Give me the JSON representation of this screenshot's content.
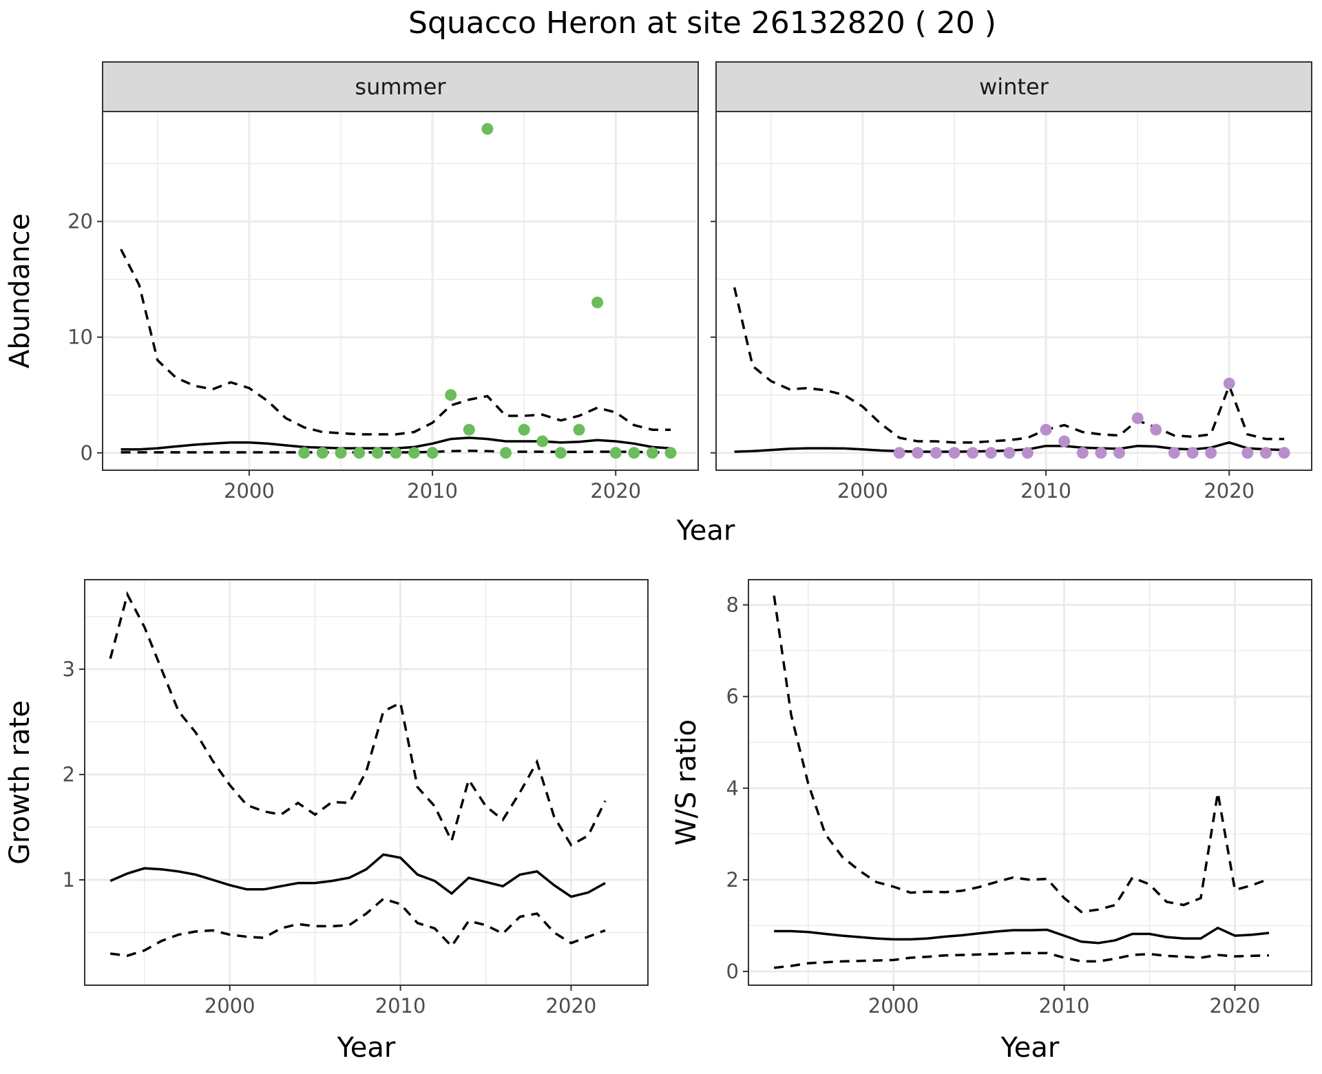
{
  "title": "Squacco Heron at site 26132820 ( 20 )",
  "colors": {
    "summer_points": "#6bbd5b",
    "winter_points": "#b98fcb",
    "lines": "#000000"
  },
  "chart_data": [
    {
      "type": "scatter",
      "panel": "summer",
      "strip_label": "summer",
      "xlabel": "",
      "ylabel": "Abundance",
      "xlim": [
        1992,
        2024.5
      ],
      "ylim": [
        -1.5,
        29.5
      ],
      "xticks": [
        2000,
        2010,
        2020
      ],
      "yticks": [
        0,
        10,
        20
      ],
      "grid": true,
      "points": {
        "color": "#6bbd5b",
        "x": [
          2003,
          2004,
          2005,
          2006,
          2007,
          2008,
          2009,
          2010,
          2011,
          2012,
          2013,
          2014,
          2015,
          2016,
          2017,
          2018,
          2019,
          2020,
          2021,
          2022,
          2023
        ],
        "y": [
          0,
          0,
          0,
          0,
          0,
          0,
          0,
          0,
          5,
          2,
          28,
          0,
          2,
          1,
          0,
          2,
          13,
          0,
          0,
          0,
          0
        ]
      },
      "lines": {
        "x": [
          1993,
          1994,
          1995,
          1996,
          1997,
          1998,
          1999,
          2000,
          2001,
          2002,
          2003,
          2004,
          2005,
          2006,
          2007,
          2008,
          2009,
          2010,
          2011,
          2012,
          2013,
          2014,
          2015,
          2016,
          2017,
          2018,
          2019,
          2020,
          2021,
          2022,
          2023
        ],
        "estimate": [
          0.3,
          0.3,
          0.4,
          0.55,
          0.7,
          0.8,
          0.9,
          0.9,
          0.8,
          0.65,
          0.5,
          0.45,
          0.4,
          0.4,
          0.4,
          0.4,
          0.5,
          0.8,
          1.2,
          1.3,
          1.2,
          1.0,
          1.0,
          1.0,
          0.9,
          0.95,
          1.1,
          1.0,
          0.8,
          0.5,
          0.4
        ],
        "upper": [
          17.6,
          14.5,
          8.0,
          6.5,
          5.8,
          5.5,
          6.1,
          5.6,
          4.5,
          3.0,
          2.2,
          1.8,
          1.7,
          1.6,
          1.6,
          1.6,
          1.8,
          2.6,
          4.1,
          4.6,
          4.9,
          3.2,
          3.2,
          3.3,
          2.8,
          3.2,
          3.9,
          3.5,
          2.4,
          2.0,
          2.0
        ],
        "lower": [
          0.05,
          0.05,
          0.05,
          0.05,
          0.05,
          0.05,
          0.05,
          0.05,
          0.05,
          0.05,
          0.05,
          0.05,
          0.05,
          0.05,
          0.05,
          0.05,
          0.05,
          0.08,
          0.15,
          0.18,
          0.15,
          0.1,
          0.1,
          0.1,
          0.08,
          0.08,
          0.1,
          0.1,
          0.08,
          0.05,
          0.05
        ]
      }
    },
    {
      "type": "scatter",
      "panel": "winter",
      "strip_label": "winter",
      "xlabel": "",
      "ylabel": "",
      "xlim": [
        1992,
        2024.5
      ],
      "ylim": [
        -1.5,
        29.5
      ],
      "xticks": [
        2000,
        2010,
        2020
      ],
      "yticks": [
        0,
        10,
        20
      ],
      "grid": true,
      "points": {
        "color": "#b98fcb",
        "x": [
          2002,
          2003,
          2004,
          2005,
          2006,
          2007,
          2008,
          2009,
          2010,
          2011,
          2012,
          2013,
          2014,
          2015,
          2016,
          2017,
          2018,
          2019,
          2020,
          2021,
          2022,
          2023
        ],
        "y": [
          0,
          0,
          0,
          0,
          0,
          0,
          0,
          0,
          2,
          1,
          0,
          0,
          0,
          3,
          2,
          0,
          0,
          0,
          6,
          0,
          0,
          0
        ]
      },
      "lines": {
        "x": [
          1993,
          1994,
          1995,
          1996,
          1997,
          1998,
          1999,
          2000,
          2001,
          2002,
          2003,
          2004,
          2005,
          2006,
          2007,
          2008,
          2009,
          2010,
          2011,
          2012,
          2013,
          2014,
          2015,
          2016,
          2017,
          2018,
          2019,
          2020,
          2021,
          2022,
          2023
        ],
        "estimate": [
          0.1,
          0.15,
          0.25,
          0.35,
          0.4,
          0.4,
          0.38,
          0.3,
          0.2,
          0.15,
          0.1,
          0.1,
          0.1,
          0.12,
          0.15,
          0.2,
          0.3,
          0.6,
          0.6,
          0.45,
          0.4,
          0.35,
          0.6,
          0.55,
          0.35,
          0.3,
          0.45,
          0.9,
          0.4,
          0.3,
          0.25
        ],
        "upper": [
          14.3,
          7.5,
          6.2,
          5.5,
          5.6,
          5.4,
          5.0,
          4.0,
          2.5,
          1.3,
          1.0,
          1.0,
          0.9,
          0.9,
          1.0,
          1.1,
          1.3,
          2.0,
          2.4,
          1.8,
          1.6,
          1.5,
          2.8,
          2.2,
          1.5,
          1.4,
          1.6,
          5.8,
          1.6,
          1.2,
          1.2
        ]
      }
    },
    {
      "type": "line",
      "panel": "growth",
      "xlabel": "Year",
      "ylabel": "Growth rate",
      "xlim": [
        1991.5,
        2024.5
      ],
      "ylim": [
        0.0,
        3.85
      ],
      "xticks": [
        2000,
        2010,
        2020
      ],
      "yticks": [
        1,
        2,
        3
      ],
      "grid": true,
      "series": [
        {
          "role": "estimate",
          "x": [
            1993,
            1994,
            1995,
            1996,
            1997,
            1998,
            1999,
            2000,
            2001,
            2002,
            2003,
            2004,
            2005,
            2006,
            2007,
            2008,
            2009,
            2010,
            2011,
            2012,
            2013,
            2014,
            2015,
            2016,
            2017,
            2018,
            2019,
            2020,
            2021,
            2022
          ],
          "values": [
            0.99,
            1.06,
            1.11,
            1.1,
            1.08,
            1.05,
            1.0,
            0.95,
            0.91,
            0.91,
            0.94,
            0.97,
            0.97,
            0.99,
            1.02,
            1.1,
            1.24,
            1.21,
            1.05,
            0.99,
            0.87,
            1.02,
            0.98,
            0.94,
            1.05,
            1.08,
            0.95,
            0.84,
            0.88,
            0.97
          ]
        },
        {
          "role": "upper",
          "x": [
            1993,
            1994,
            1995,
            1996,
            1997,
            1998,
            1999,
            2000,
            2001,
            2002,
            2003,
            2004,
            2005,
            2006,
            2007,
            2008,
            2009,
            2010,
            2011,
            2012,
            2013,
            2014,
            2015,
            2016,
            2017,
            2018,
            2019,
            2020,
            2021,
            2022
          ],
          "values": [
            3.1,
            3.71,
            3.4,
            3.0,
            2.6,
            2.4,
            2.13,
            1.9,
            1.71,
            1.65,
            1.62,
            1.73,
            1.62,
            1.74,
            1.73,
            2.03,
            2.6,
            2.68,
            1.88,
            1.7,
            1.37,
            1.95,
            1.7,
            1.57,
            1.83,
            2.12,
            1.6,
            1.33,
            1.42,
            1.75
          ]
        },
        {
          "role": "lower",
          "x": [
            1993,
            1994,
            1995,
            1996,
            1997,
            1998,
            1999,
            2000,
            2001,
            2002,
            2003,
            2004,
            2005,
            2006,
            2007,
            2008,
            2009,
            2010,
            2011,
            2012,
            2013,
            2014,
            2015,
            2016,
            2017,
            2018,
            2019,
            2020,
            2021,
            2022
          ],
          "values": [
            0.3,
            0.28,
            0.33,
            0.42,
            0.48,
            0.51,
            0.52,
            0.48,
            0.46,
            0.45,
            0.54,
            0.58,
            0.56,
            0.56,
            0.57,
            0.68,
            0.82,
            0.77,
            0.59,
            0.54,
            0.37,
            0.61,
            0.57,
            0.49,
            0.65,
            0.68,
            0.5,
            0.4,
            0.46,
            0.52
          ]
        }
      ]
    },
    {
      "type": "line",
      "panel": "ratio",
      "xlabel": "Year",
      "ylabel": "W/S ratio",
      "xlim": [
        1991.5,
        2024.5
      ],
      "ylim": [
        -0.3,
        8.55
      ],
      "xticks": [
        2000,
        2010,
        2020
      ],
      "yticks": [
        0,
        2,
        4,
        6,
        8
      ],
      "grid": true,
      "series": [
        {
          "role": "estimate",
          "x": [
            1993,
            1994,
            1995,
            1996,
            1997,
            1998,
            1999,
            2000,
            2001,
            2002,
            2003,
            2004,
            2005,
            2006,
            2007,
            2008,
            2009,
            2010,
            2011,
            2012,
            2013,
            2014,
            2015,
            2016,
            2017,
            2018,
            2019,
            2020,
            2021,
            2022
          ],
          "values": [
            0.88,
            0.88,
            0.86,
            0.82,
            0.78,
            0.75,
            0.72,
            0.7,
            0.7,
            0.72,
            0.76,
            0.79,
            0.83,
            0.87,
            0.9,
            0.9,
            0.91,
            0.78,
            0.65,
            0.62,
            0.68,
            0.82,
            0.82,
            0.75,
            0.72,
            0.72,
            0.95,
            0.78,
            0.8,
            0.84
          ]
        },
        {
          "role": "upper",
          "x": [
            1993,
            1994,
            1995,
            1996,
            1997,
            1998,
            1999,
            2000,
            2001,
            2002,
            2003,
            2004,
            2005,
            2006,
            2007,
            2008,
            2009,
            2010,
            2011,
            2012,
            2013,
            2014,
            2015,
            2016,
            2017,
            2018,
            2019,
            2020,
            2021,
            2022
          ],
          "values": [
            8.2,
            5.6,
            4.1,
            3.0,
            2.5,
            2.2,
            1.95,
            1.85,
            1.72,
            1.74,
            1.73,
            1.76,
            1.84,
            1.95,
            2.05,
            2.0,
            2.02,
            1.6,
            1.3,
            1.35,
            1.45,
            2.05,
            1.9,
            1.52,
            1.45,
            1.6,
            3.9,
            1.78,
            1.88,
            2.02
          ]
        },
        {
          "role": "lower",
          "x": [
            1993,
            1994,
            1995,
            1996,
            1997,
            1998,
            1999,
            2000,
            2001,
            2002,
            2003,
            2004,
            2005,
            2006,
            2007,
            2008,
            2009,
            2010,
            2011,
            2012,
            2013,
            2014,
            2015,
            2016,
            2017,
            2018,
            2019,
            2020,
            2021,
            2022
          ],
          "values": [
            0.08,
            0.12,
            0.18,
            0.2,
            0.22,
            0.23,
            0.24,
            0.25,
            0.3,
            0.32,
            0.35,
            0.36,
            0.37,
            0.38,
            0.4,
            0.4,
            0.4,
            0.3,
            0.22,
            0.22,
            0.28,
            0.36,
            0.38,
            0.34,
            0.32,
            0.3,
            0.36,
            0.33,
            0.34,
            0.35
          ]
        }
      ]
    }
  ],
  "shared_axes": {
    "top_xlabel": "Year"
  }
}
